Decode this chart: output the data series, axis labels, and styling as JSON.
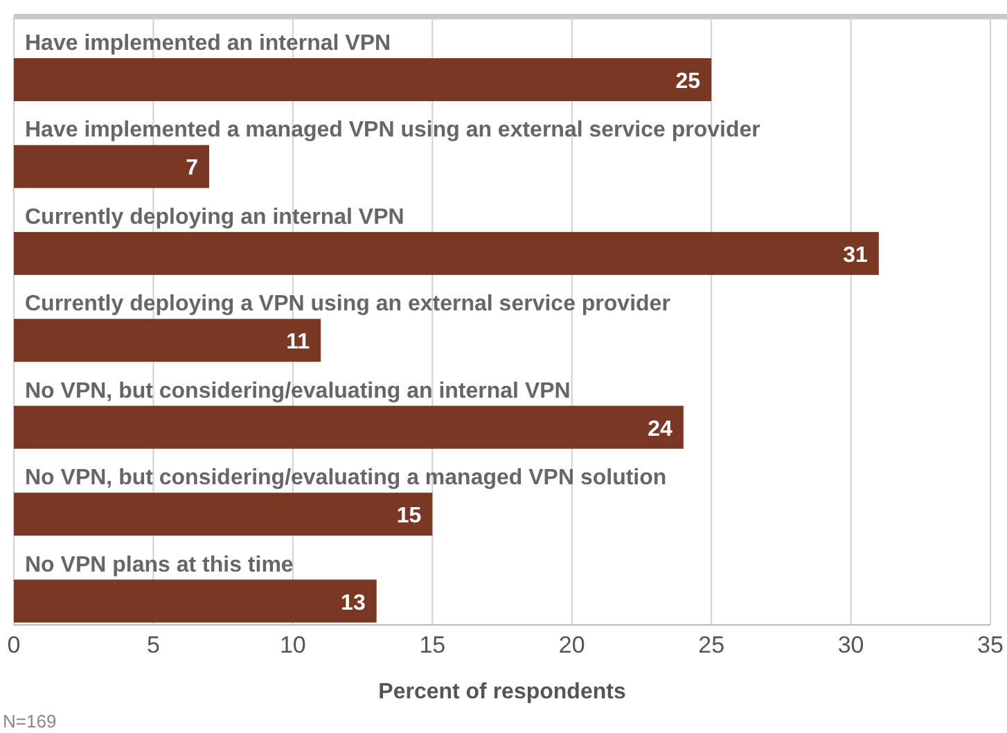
{
  "chart_data": {
    "type": "bar",
    "orientation": "horizontal",
    "categories": [
      "Have implemented an internal VPN",
      "Have implemented a managed VPN using an external service provider",
      "Currently deploying an internal VPN",
      "Currently deploying a VPN using an external service provider",
      "No VPN, but considering/evaluating an internal VPN",
      "No VPN, but considering/evaluating a managed VPN solution",
      "No VPN plans at this time"
    ],
    "values": [
      25,
      7,
      31,
      11,
      24,
      15,
      13
    ],
    "color": "#7a3824",
    "xlim": [
      0,
      35
    ],
    "xticks": [
      0,
      5,
      10,
      15,
      20,
      25,
      30,
      35
    ],
    "xlabel": "Percent of respondents",
    "grid": "x",
    "data_labels": true,
    "annotations": [
      "N=169"
    ]
  }
}
